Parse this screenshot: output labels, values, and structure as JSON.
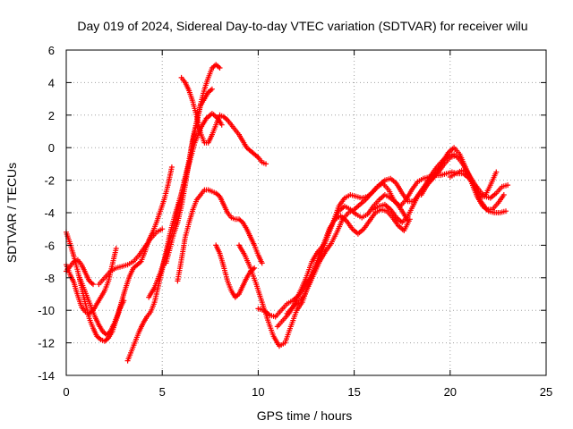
{
  "chart_data": {
    "type": "scatter",
    "title": "Day 019 of 2024, Sidereal Day-to-day VTEC variation (SDTVAR) for receiver wilu",
    "xlabel": "GPS time / hours",
    "ylabel": "SDTVAR / TECUs",
    "xlim": [
      0,
      25
    ],
    "ylim": [
      -14,
      6
    ],
    "xticks": [
      0,
      5,
      10,
      15,
      20,
      25
    ],
    "yticks": [
      -14,
      -12,
      -10,
      -8,
      -6,
      -4,
      -2,
      0,
      2,
      4,
      6
    ],
    "grid": true,
    "marker": "plus",
    "color": "#ff0000",
    "series": [
      {
        "x": [
          0.0,
          0.2,
          0.4,
          0.6,
          0.8,
          1.0,
          1.2,
          1.4,
          1.6,
          1.8,
          2.0,
          2.2,
          2.4,
          2.6,
          2.8,
          3.0
        ],
        "y": [
          -5.2,
          -5.9,
          -6.7,
          -7.6,
          -8.6,
          -9.6,
          -10.5,
          -11.1,
          -11.6,
          -11.8,
          -11.9,
          -11.7,
          -11.3,
          -10.6,
          -9.9,
          -9.4
        ]
      },
      {
        "x": [
          0.0,
          0.2,
          0.4,
          0.6,
          0.8,
          1.0,
          1.2,
          1.4,
          1.6,
          1.8,
          2.0,
          2.2,
          2.4,
          2.6
        ],
        "y": [
          -7.2,
          -7.8,
          -8.3,
          -9.1,
          -9.8,
          -10.1,
          -10.2,
          -10.0,
          -9.6,
          -9.2,
          -8.8,
          -8.2,
          -7.2,
          -6.2
        ]
      },
      {
        "x": [
          0.0,
          0.2,
          0.4,
          0.6,
          0.8,
          1.0,
          1.2,
          1.4
        ],
        "y": [
          -7.6,
          -7.3,
          -7.0,
          -6.9,
          -7.2,
          -7.7,
          -8.2,
          -8.4
        ]
      },
      {
        "x": [
          0.7,
          0.9,
          1.1,
          1.3,
          1.5,
          1.7,
          1.9,
          2.1,
          2.3,
          2.5,
          2.7,
          2.9,
          3.1,
          3.3,
          3.5,
          3.7,
          3.9,
          4.1,
          4.3,
          4.5,
          4.7,
          4.9,
          5.1,
          5.3,
          5.5
        ],
        "y": [
          -8.0,
          -8.6,
          -9.2,
          -9.8,
          -10.4,
          -10.9,
          -11.3,
          -11.5,
          -11.3,
          -10.8,
          -10.2,
          -9.4,
          -8.6,
          -7.9,
          -7.4,
          -7.2,
          -7.0,
          -6.4,
          -5.7,
          -5.2,
          -4.6,
          -3.9,
          -3.2,
          -2.3,
          -1.2
        ]
      },
      {
        "x": [
          1.7,
          2.0,
          2.3,
          2.6,
          2.9,
          3.2,
          3.5,
          3.8,
          4.1,
          4.4,
          4.7,
          5.0
        ],
        "y": [
          -8.4,
          -8.0,
          -7.6,
          -7.4,
          -7.3,
          -7.2,
          -7.0,
          -6.6,
          -6.1,
          -5.6,
          -5.2,
          -5.0
        ]
      },
      {
        "x": [
          3.2,
          3.4,
          3.6,
          3.8,
          4.0,
          4.2,
          4.4,
          4.6,
          4.8,
          5.0,
          5.2,
          5.4,
          5.6,
          5.8,
          6.0,
          6.2,
          6.4,
          6.6,
          6.8,
          7.0,
          7.2,
          7.4,
          7.6,
          7.8,
          8.0
        ],
        "y": [
          -13.1,
          -12.5,
          -11.9,
          -11.3,
          -10.8,
          -10.4,
          -10.1,
          -9.5,
          -8.5,
          -7.5,
          -6.4,
          -5.3,
          -4.4,
          -3.6,
          -2.8,
          -1.8,
          -0.8,
          0.4,
          1.6,
          2.7,
          3.6,
          4.3,
          4.9,
          5.1,
          4.9
        ]
      },
      {
        "x": [
          4.3,
          4.6,
          4.9,
          5.2,
          5.5,
          5.8,
          6.1,
          6.4,
          6.7,
          7.0,
          7.3,
          7.6,
          7.9,
          8.1
        ],
        "y": [
          -9.2,
          -8.6,
          -7.7,
          -6.6,
          -5.3,
          -3.9,
          -2.4,
          -1.0,
          0.3,
          1.2,
          1.8,
          2.1,
          1.8,
          1.4
        ]
      },
      {
        "x": [
          5.2,
          5.4,
          5.6,
          5.8,
          6.0,
          6.2,
          6.4,
          6.6,
          6.8,
          7.0,
          7.2,
          7.4,
          7.6
        ],
        "y": [
          -7.1,
          -6.2,
          -5.3,
          -4.6,
          -3.6,
          -2.3,
          -0.8,
          0.6,
          1.6,
          2.6,
          3.0,
          3.4,
          3.6
        ]
      },
      {
        "x": [
          6.0,
          6.2,
          6.4,
          6.6,
          6.8,
          7.0,
          7.2,
          7.4,
          7.6,
          7.8,
          8.0,
          8.2,
          8.4,
          8.6,
          8.8,
          9.0,
          9.2,
          9.4,
          9.6,
          9.8,
          10.0,
          10.2,
          10.4
        ],
        "y": [
          4.3,
          4.0,
          3.5,
          2.8,
          1.9,
          0.9,
          0.3,
          0.3,
          0.8,
          1.4,
          2.0,
          1.9,
          1.7,
          1.4,
          1.1,
          0.8,
          0.4,
          0.0,
          -0.2,
          -0.4,
          -0.6,
          -0.9,
          -1.0
        ]
      },
      {
        "x": [
          5.8,
          6.0,
          6.2,
          6.4,
          6.6,
          6.8,
          7.0,
          7.2,
          7.4,
          7.6,
          7.8,
          8.0,
          8.2,
          8.4,
          8.6,
          8.8,
          9.0,
          9.2,
          9.4,
          9.6,
          9.8,
          10.0,
          10.2
        ],
        "y": [
          -8.2,
          -6.9,
          -5.5,
          -4.6,
          -3.8,
          -3.2,
          -2.9,
          -2.6,
          -2.6,
          -2.7,
          -2.8,
          -3.0,
          -3.5,
          -4.0,
          -4.3,
          -4.4,
          -4.4,
          -4.6,
          -5.0,
          -5.5,
          -6.0,
          -6.6,
          -7.1
        ]
      },
      {
        "x": [
          7.8,
          8.0,
          8.2,
          8.4,
          8.6,
          8.8,
          9.0,
          9.2,
          9.4,
          9.6,
          9.8
        ],
        "y": [
          -6.0,
          -6.5,
          -7.3,
          -8.2,
          -8.8,
          -9.2,
          -9.0,
          -8.5,
          -8.0,
          -7.6,
          -7.4
        ]
      },
      {
        "x": [
          9.0,
          9.3,
          9.6,
          9.9,
          10.2,
          10.5,
          10.8,
          11.1,
          11.4,
          11.7,
          12.0
        ],
        "y": [
          -6.0,
          -6.6,
          -7.4,
          -8.4,
          -9.5,
          -10.6,
          -11.6,
          -12.2,
          -12.0,
          -11.0,
          -10.0
        ]
      },
      {
        "x": [
          10.0,
          10.3,
          10.6,
          10.9,
          11.2,
          11.5,
          11.8,
          12.1,
          12.4,
          12.7,
          13.0,
          13.3,
          13.6,
          13.9,
          14.2,
          14.5,
          14.8,
          15.1,
          15.4,
          15.7,
          16.0,
          16.3,
          16.6,
          16.9,
          17.2,
          17.5,
          17.8
        ],
        "y": [
          -9.9,
          -10.0,
          -10.3,
          -10.4,
          -10.0,
          -9.6,
          -9.4,
          -9.1,
          -8.6,
          -8.0,
          -7.3,
          -6.5,
          -5.5,
          -4.6,
          -3.9,
          -3.6,
          -3.8,
          -4.1,
          -4.3,
          -4.1,
          -3.6,
          -3.2,
          -2.9,
          -3.1,
          -3.4,
          -3.9,
          -4.5
        ]
      },
      {
        "x": [
          11.0,
          11.3,
          11.6,
          11.9,
          12.2,
          12.5,
          12.8,
          13.1,
          13.4,
          13.7,
          14.0,
          14.3,
          14.6,
          14.9,
          15.2,
          15.5,
          15.8,
          16.1,
          16.4,
          16.7,
          17.0,
          17.3,
          17.6,
          17.9
        ],
        "y": [
          -11.0,
          -10.6,
          -10.2,
          -9.6,
          -8.8,
          -8.0,
          -7.0,
          -6.4,
          -6.0,
          -5.0,
          -4.4,
          -4.2,
          -4.5,
          -5.0,
          -5.3,
          -5.0,
          -4.5,
          -4.0,
          -3.8,
          -3.9,
          -4.3,
          -4.8,
          -5.1,
          -4.4
        ]
      },
      {
        "x": [
          11.5,
          11.8,
          12.1,
          12.4,
          12.7,
          13.0,
          13.3,
          13.6,
          13.9,
          14.2,
          14.5,
          14.8,
          15.1,
          15.4,
          15.7,
          16.0,
          16.3,
          16.6,
          16.9,
          17.2,
          17.5,
          17.8,
          18.1,
          18.4,
          18.7,
          19.0,
          19.3,
          19.6,
          19.9,
          20.2
        ],
        "y": [
          -10.2,
          -9.8,
          -9.5,
          -9.1,
          -8.3,
          -7.2,
          -6.2,
          -5.4,
          -4.6,
          -3.6,
          -3.1,
          -2.9,
          -3.0,
          -3.1,
          -3.0,
          -2.7,
          -2.3,
          -2.0,
          -1.9,
          -2.2,
          -2.8,
          -3.3,
          -3.3,
          -2.8,
          -2.3,
          -1.7,
          -1.2,
          -0.8,
          -0.5,
          -0.4
        ]
      },
      {
        "x": [
          12.0,
          12.3,
          12.6,
          12.9,
          13.2,
          13.5,
          13.8,
          14.1,
          14.4,
          14.7,
          15.0,
          15.3,
          15.6,
          15.9,
          16.2,
          16.5,
          16.8,
          17.1,
          17.4,
          17.7,
          18.0,
          18.3,
          18.6,
          18.9,
          19.2,
          19.5,
          19.8,
          20.1,
          20.4,
          20.7,
          21.0,
          21.3,
          21.6,
          21.9,
          22.2,
          22.5,
          22.8
        ],
        "y": [
          -10.0,
          -9.5,
          -8.5,
          -7.8,
          -7.0,
          -6.4,
          -5.9,
          -5.2,
          -4.4,
          -4.0,
          -3.8,
          -3.5,
          -3.2,
          -2.8,
          -2.4,
          -2.2,
          -2.6,
          -3.3,
          -3.6,
          -3.2,
          -2.6,
          -2.1,
          -1.9,
          -1.8,
          -1.7,
          -1.7,
          -1.6,
          -1.5,
          -1.6,
          -1.6,
          -1.9,
          -2.4,
          -3.3,
          -3.8,
          -3.8,
          -3.4,
          -2.9
        ]
      },
      {
        "x": [
          16.0,
          16.3,
          16.6,
          16.9,
          17.2,
          17.5,
          17.8,
          18.1,
          18.4,
          18.7,
          19.0,
          19.3,
          19.6,
          19.9,
          20.2,
          20.5,
          20.8,
          21.1,
          21.4,
          21.7,
          22.0,
          22.3,
          22.6,
          22.9
        ],
        "y": [
          -3.8,
          -3.6,
          -3.5,
          -3.8,
          -4.3,
          -4.6,
          -4.2,
          -3.5,
          -2.8,
          -2.4,
          -2.0,
          -1.5,
          -0.9,
          -0.3,
          0.0,
          -0.4,
          -1.2,
          -2.1,
          -3.0,
          -3.6,
          -3.9,
          -4.0,
          -4.0,
          -3.9
        ]
      },
      {
        "x": [
          18.5,
          18.8,
          19.1,
          19.4,
          19.7,
          20.0,
          20.3,
          20.6,
          20.9,
          21.2,
          21.5,
          21.8,
          22.1,
          22.4,
          22.7,
          23.0
        ],
        "y": [
          -2.9,
          -2.3,
          -1.9,
          -1.5,
          -1.0,
          -0.6,
          -0.5,
          -0.9,
          -1.5,
          -2.1,
          -2.6,
          -3.0,
          -3.1,
          -2.8,
          -2.4,
          -2.3
        ]
      },
      {
        "x": [
          20.0,
          20.3,
          20.6,
          20.9,
          21.2,
          21.5,
          21.8,
          22.1,
          22.4
        ],
        "y": [
          -1.8,
          -1.6,
          -1.4,
          -1.5,
          -2.2,
          -3.0,
          -3.0,
          -2.3,
          -1.5
        ]
      }
    ]
  }
}
